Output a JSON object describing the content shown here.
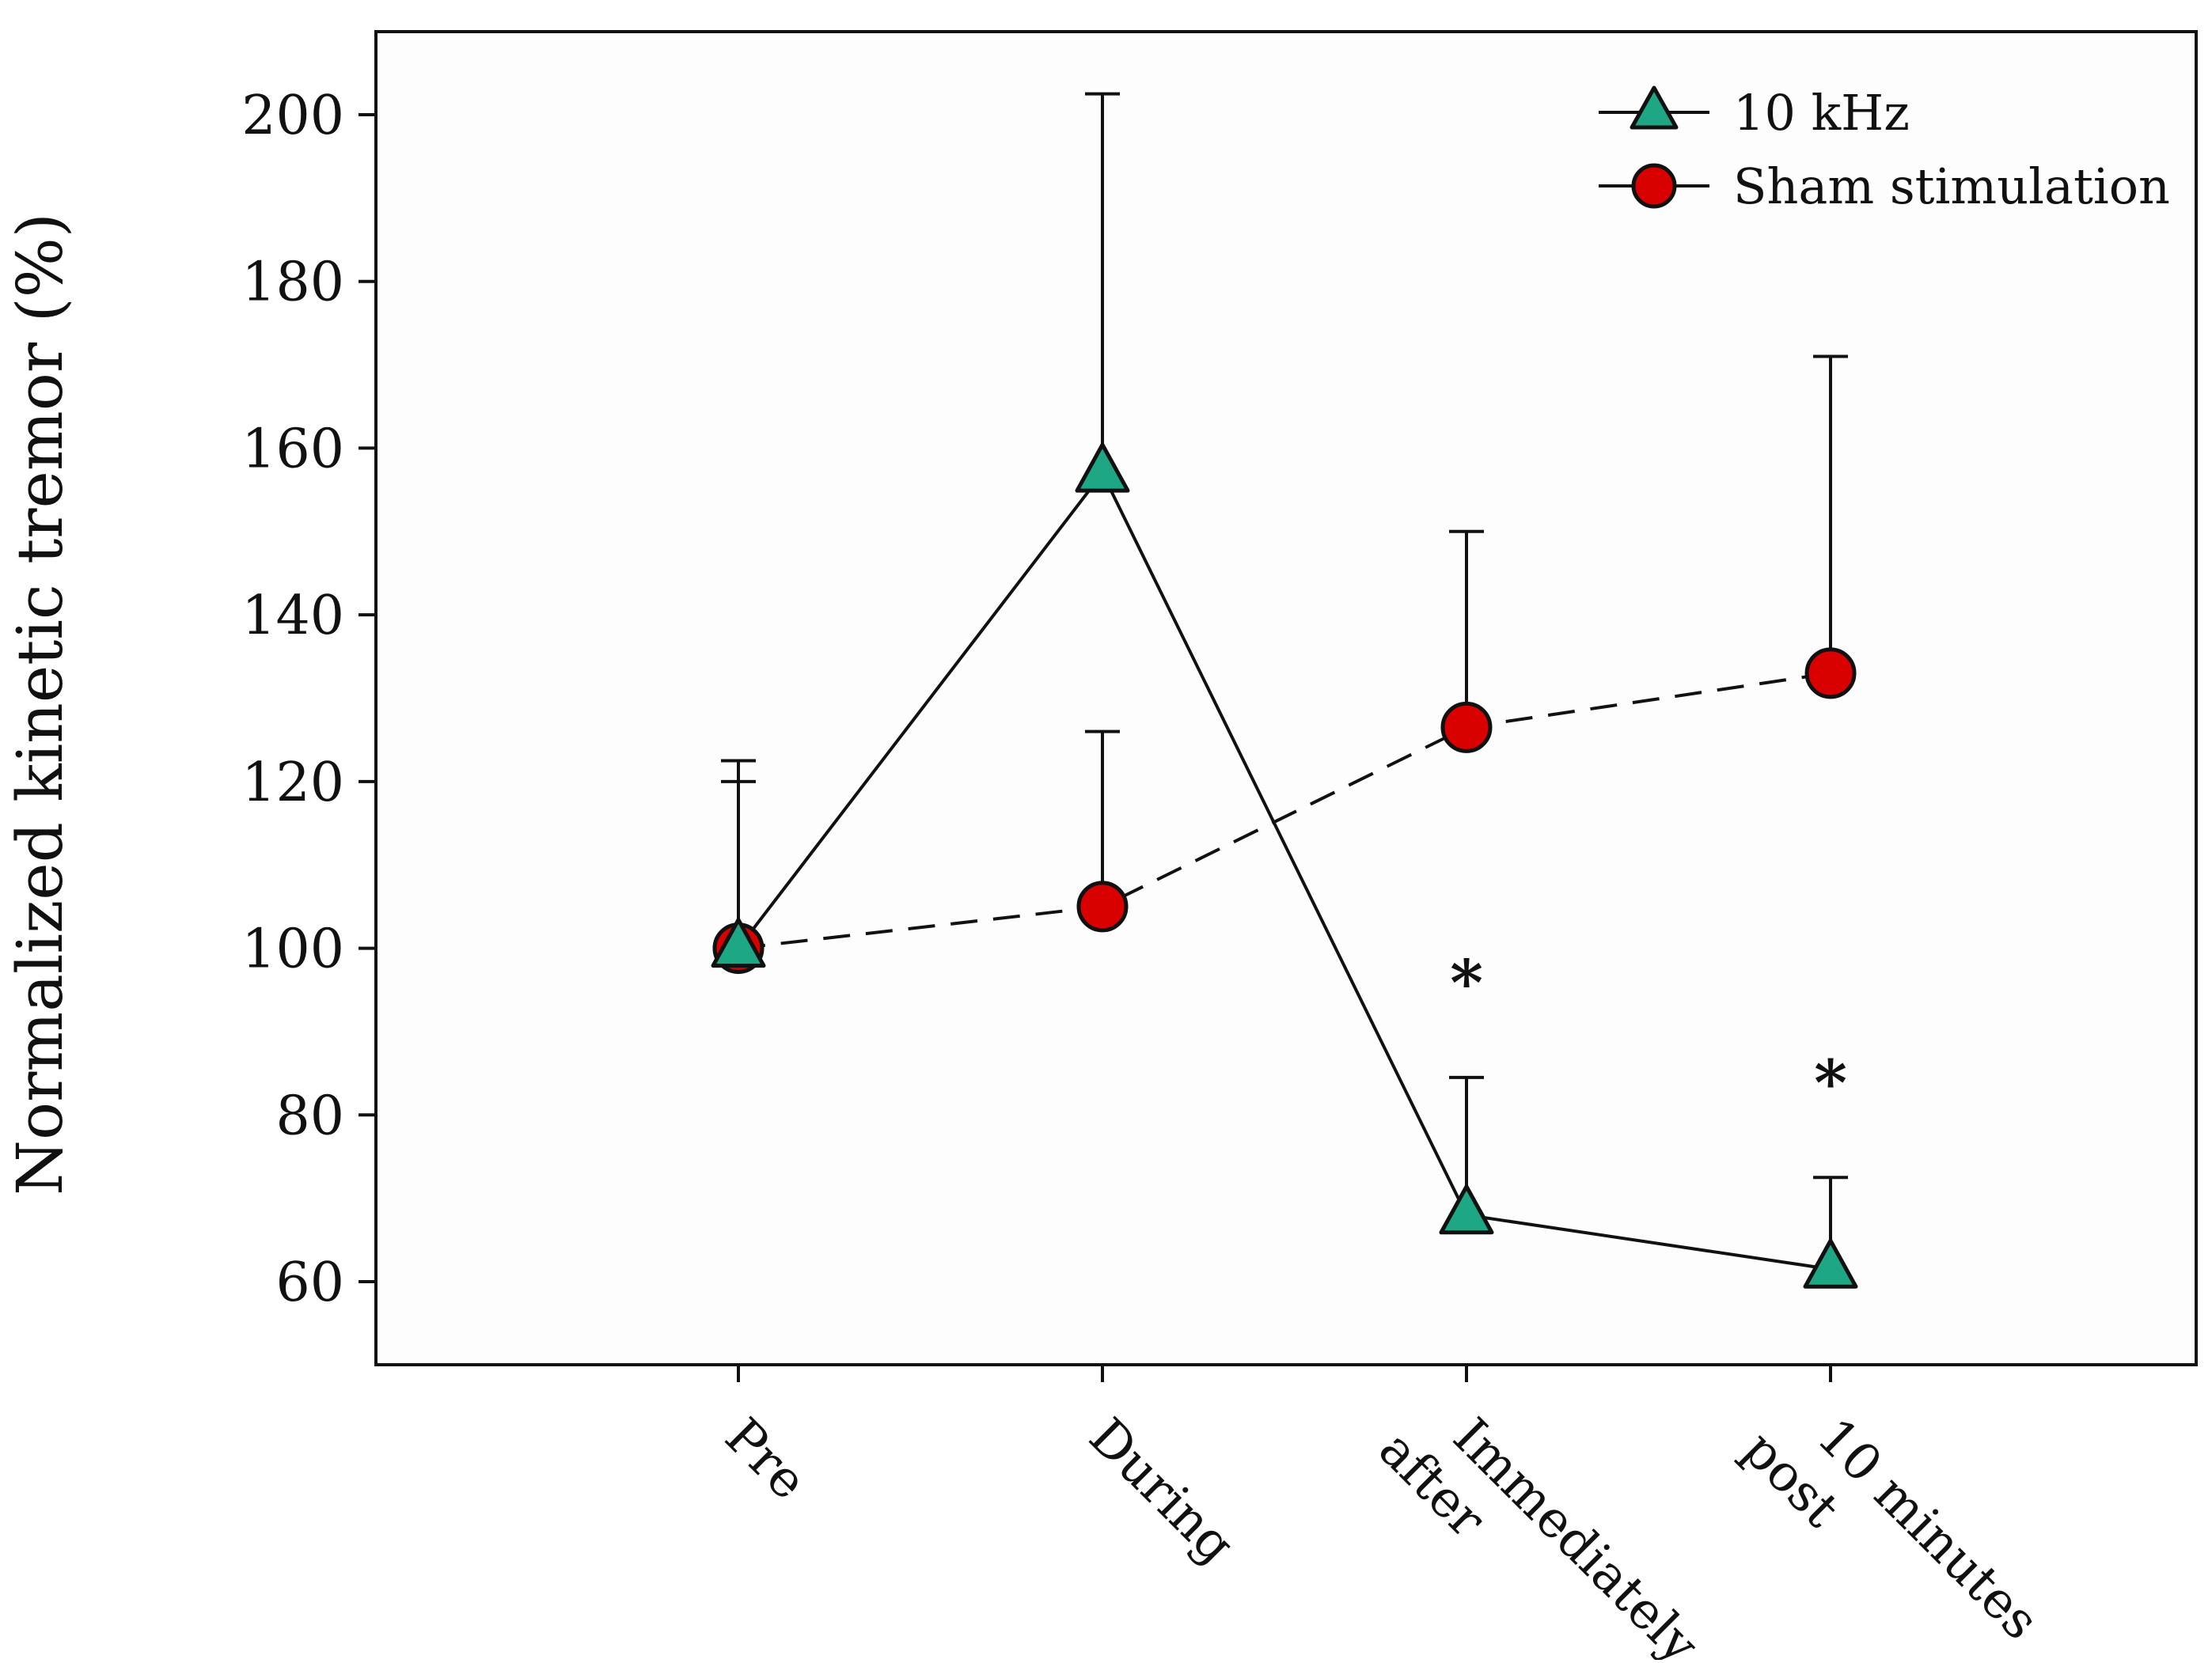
{
  "chart_data": {
    "type": "line",
    "title": "",
    "xlabel": "",
    "ylabel": "Normalized kinetic tremor (%)",
    "ylim": [
      50,
      210
    ],
    "yticks": [
      60,
      80,
      100,
      120,
      140,
      160,
      180,
      200
    ],
    "ytick_labels": [
      "60",
      "80",
      "100",
      "120",
      "140",
      "160",
      "180",
      "200"
    ],
    "categories": [
      "Pre",
      "During",
      "Immediately after",
      "10 minutes post"
    ],
    "category_label_lines": [
      [
        "Pre"
      ],
      [
        "During"
      ],
      [
        "Immediately",
        "after"
      ],
      [
        "10 minutes",
        "post"
      ]
    ],
    "grid": false,
    "legend_position": "top-right",
    "series": [
      {
        "name": "10 kHz",
        "values": [
          100,
          157,
          68,
          61.5
        ],
        "error_upper": [
          120,
          202.5,
          84.5,
          72.5
        ],
        "marker": "triangle",
        "line_style": "solid",
        "color": "#1ea784"
      },
      {
        "name": "Sham stimulation",
        "values": [
          100,
          105,
          126.5,
          133
        ],
        "error_upper": [
          122.5,
          126,
          150,
          171
        ],
        "marker": "circle",
        "line_style": "dashed",
        "color": "#d90000"
      }
    ],
    "annotations": [
      {
        "category_index": 2,
        "y": 97,
        "text": "*"
      },
      {
        "category_index": 3,
        "y": 85,
        "text": "*"
      }
    ]
  }
}
